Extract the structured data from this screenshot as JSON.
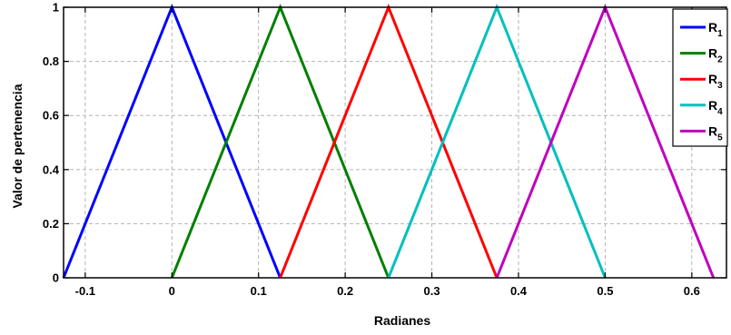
{
  "chart_data": {
    "type": "line",
    "title": "",
    "xlabel": "Radianes",
    "ylabel": "Valor de pertenencia",
    "xlim": [
      -0.125,
      0.64
    ],
    "ylim": [
      0,
      1
    ],
    "xticks": [
      -0.1,
      0,
      0.1,
      0.2,
      0.3,
      0.4,
      0.5,
      0.6
    ],
    "xtick_labels": [
      "-0.1",
      "0",
      "0.1",
      "0.2",
      "0.3",
      "0.4",
      "0.5",
      "0.6"
    ],
    "yticks": [
      0,
      0.2,
      0.4,
      0.6,
      0.8,
      1
    ],
    "ytick_labels": [
      "0",
      "0.2",
      "0.4",
      "0.6",
      "0.8",
      "1"
    ],
    "grid": true,
    "grid_style": "dashed",
    "legend_position": "top-right",
    "series": [
      {
        "name": "R",
        "subscript": "1",
        "color": "#0000ff",
        "x": [
          -0.125,
          0,
          0.125
        ],
        "y": [
          0,
          1,
          0
        ]
      },
      {
        "name": "R",
        "subscript": "2",
        "color": "#007f00",
        "x": [
          0,
          0.125,
          0.25
        ],
        "y": [
          0,
          1,
          0
        ]
      },
      {
        "name": "R",
        "subscript": "3",
        "color": "#ff0000",
        "x": [
          0.125,
          0.25,
          0.375
        ],
        "y": [
          0,
          1,
          0
        ]
      },
      {
        "name": "R",
        "subscript": "4",
        "color": "#00bfbf",
        "x": [
          0.25,
          0.375,
          0.5
        ],
        "y": [
          0,
          1,
          0
        ]
      },
      {
        "name": "R",
        "subscript": "5",
        "color": "#bf00bf",
        "x": [
          0.375,
          0.5,
          0.625
        ],
        "y": [
          0,
          1,
          0
        ]
      }
    ]
  }
}
